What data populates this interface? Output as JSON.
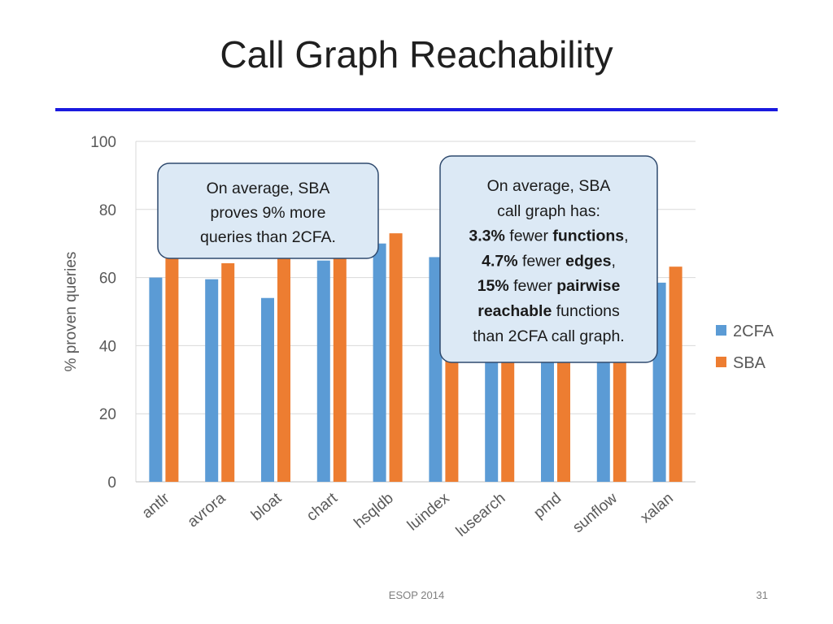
{
  "slide": {
    "title": "Call Graph Reachability",
    "footer": "ESOP 2014",
    "page_number": "31"
  },
  "colors": {
    "rule": "#1a1adf",
    "series_2cfa": "#5b9bd5",
    "series_sba": "#ed7d31",
    "callout_fill": "#dce9f5",
    "callout_border": "#2f4a6e"
  },
  "chart_data": {
    "type": "bar",
    "categories": [
      "antlr",
      "avrora",
      "bloat",
      "chart",
      "hsqldb",
      "luindex",
      "lusearch",
      "pmd",
      "sunflow",
      "xalan"
    ],
    "series": [
      {
        "name": "2CFA",
        "values": [
          60,
          59.5,
          54,
          65,
          70,
          66,
          39,
          39,
          39,
          58.5
        ]
      },
      {
        "name": "SBA",
        "values": [
          66,
          64.2,
          66,
          66,
          73,
          40,
          39,
          39,
          39,
          63.2
        ]
      }
    ],
    "ylabel": "% proven queries",
    "ylim": [
      0,
      100
    ],
    "yticks": [
      0,
      20,
      40,
      60,
      80,
      100
    ],
    "grid": true,
    "legend_position": "right"
  },
  "callouts": [
    {
      "lines": [
        [
          {
            "t": "On average, SBA",
            "b": false
          }
        ],
        [
          {
            "t": "proves 9% more",
            "b": false
          }
        ],
        [
          {
            "t": "queries than 2CFA.",
            "b": false
          }
        ]
      ]
    },
    {
      "lines": [
        [
          {
            "t": "On average, SBA",
            "b": false
          }
        ],
        [
          {
            "t": "call graph has:",
            "b": false
          }
        ],
        [
          {
            "t": "3.3%",
            "b": true
          },
          {
            "t": " fewer ",
            "b": false
          },
          {
            "t": "functions",
            "b": true
          },
          {
            "t": ",",
            "b": false
          }
        ],
        [
          {
            "t": "4.7%",
            "b": true
          },
          {
            "t": " fewer ",
            "b": false
          },
          {
            "t": "edges",
            "b": true
          },
          {
            "t": ",",
            "b": false
          }
        ],
        [
          {
            "t": "15%",
            "b": true
          },
          {
            "t": " fewer ",
            "b": false
          },
          {
            "t": "pairwise",
            "b": true
          }
        ],
        [
          {
            "t": "reachable",
            "b": true
          },
          {
            "t": " functions",
            "b": false
          }
        ],
        [
          {
            "t": "than 2CFA call graph.",
            "b": false
          }
        ]
      ]
    }
  ]
}
